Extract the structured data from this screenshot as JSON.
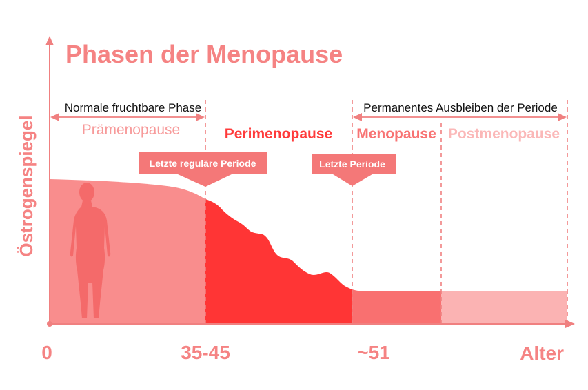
{
  "title": "Phasen der Menopause",
  "y_axis_label": "Östrogenspiegel",
  "x_axis_label": "Alter",
  "x_ticks": [
    "0",
    "35-45",
    "~51"
  ],
  "spans": {
    "fertile": "Normale fruchtbare Phase",
    "permanent": "Permanentes Ausbleiben der Periode"
  },
  "phases": [
    "Prämenopause",
    "Perimenopause",
    "Menopause",
    "Postmenopause"
  ],
  "callouts": {
    "last_regular": "Letzte reguläre Periode",
    "last": "Letzte Periode"
  },
  "colors": {
    "axis": "#f08080",
    "title": "#f58383",
    "premenopause_fill": "#f98d8d",
    "perimenopause_fill": "#ff3535",
    "menopause_fill": "#f97070",
    "postmenopause_fill": "#fbb3b3",
    "premenopause_label": "#f79a9a",
    "perimenopause_label": "#ff3a3a",
    "menopause_label": "#f87373",
    "postmenopause_label": "#fbb8b8",
    "callout_fill": "#f47878",
    "silhouette": "#f46a6a"
  },
  "icons": {
    "figure": "woman-silhouette-icon"
  }
}
